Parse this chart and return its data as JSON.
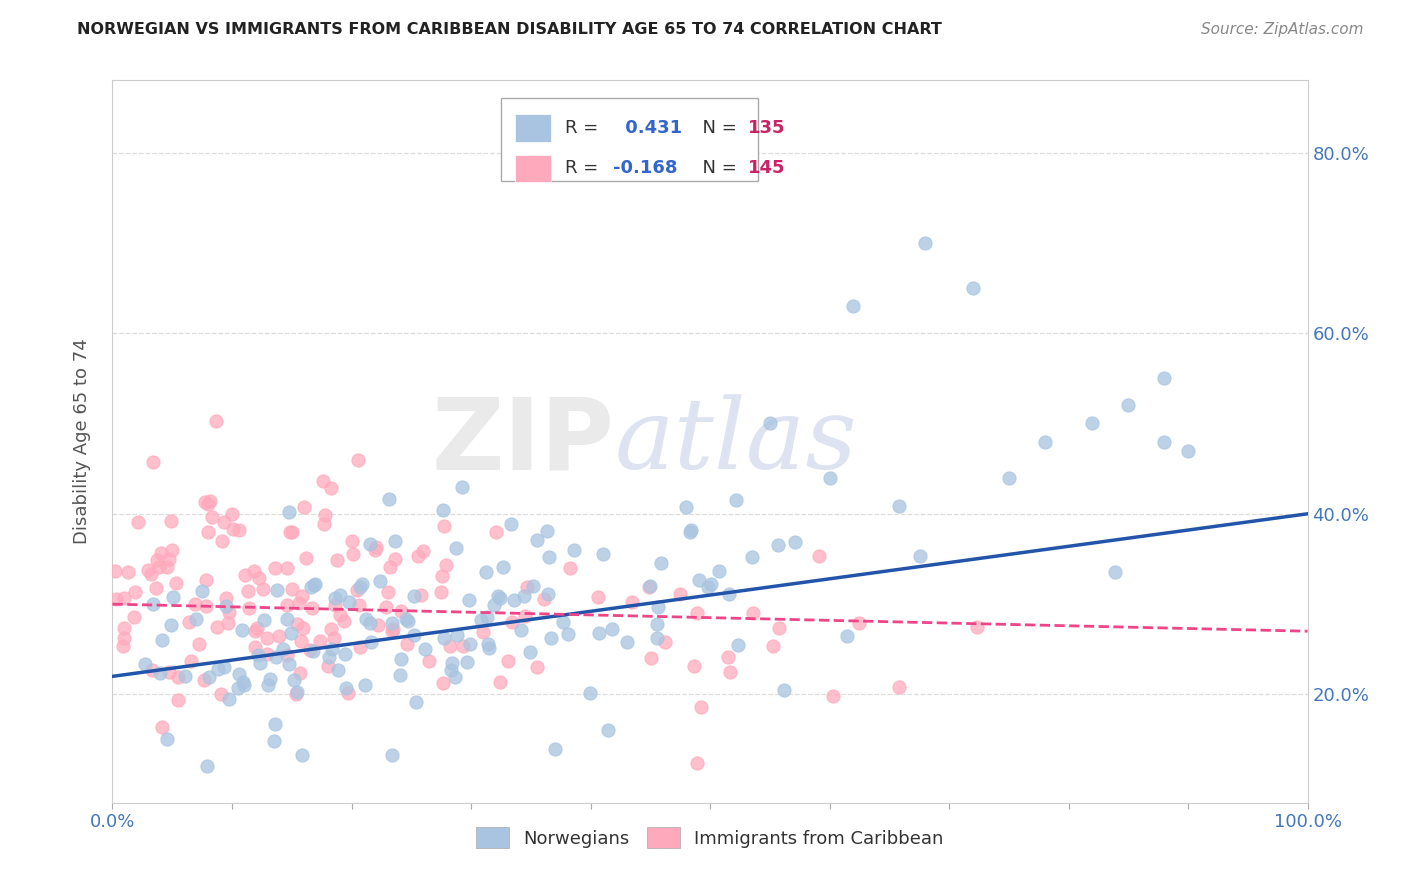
{
  "title": "NORWEGIAN VS IMMIGRANTS FROM CARIBBEAN DISABILITY AGE 65 TO 74 CORRELATION CHART",
  "source": "Source: ZipAtlas.com",
  "ylabel": "Disability Age 65 to 74",
  "xlim": [
    0.0,
    1.0
  ],
  "ylim": [
    0.08,
    0.88
  ],
  "yticks": [
    0.2,
    0.4,
    0.6,
    0.8
  ],
  "ytick_labels": [
    "20.0%",
    "40.0%",
    "60.0%",
    "80.0%"
  ],
  "xticks": [
    0.0,
    0.1,
    0.2,
    0.3,
    0.4,
    0.5,
    0.6,
    0.7,
    0.8,
    0.9,
    1.0
  ],
  "xtick_labels": [
    "0.0%",
    "",
    "",
    "",
    "",
    "",
    "",
    "",
    "",
    "",
    "100.0%"
  ],
  "series1_label": "Norwegians",
  "series1_color": "#A8C4E0",
  "series1_line_color": "#2255AA",
  "series1_R": 0.431,
  "series1_N": 135,
  "series2_label": "Immigrants from Caribbean",
  "series2_color": "#FFAABC",
  "series2_line_color": "#EE4488",
  "series2_R": -0.168,
  "series2_N": 145,
  "legend_R_color": "#3366CC",
  "legend_N_color": "#CC2266",
  "watermark_zip": "ZIP",
  "watermark_atlas": "atlas",
  "background_color": "#FFFFFF",
  "grid_color": "#DDDDDD",
  "title_fontsize": 12,
  "axis_tick_color": "#4477BB",
  "axis_label_color": "#555555"
}
